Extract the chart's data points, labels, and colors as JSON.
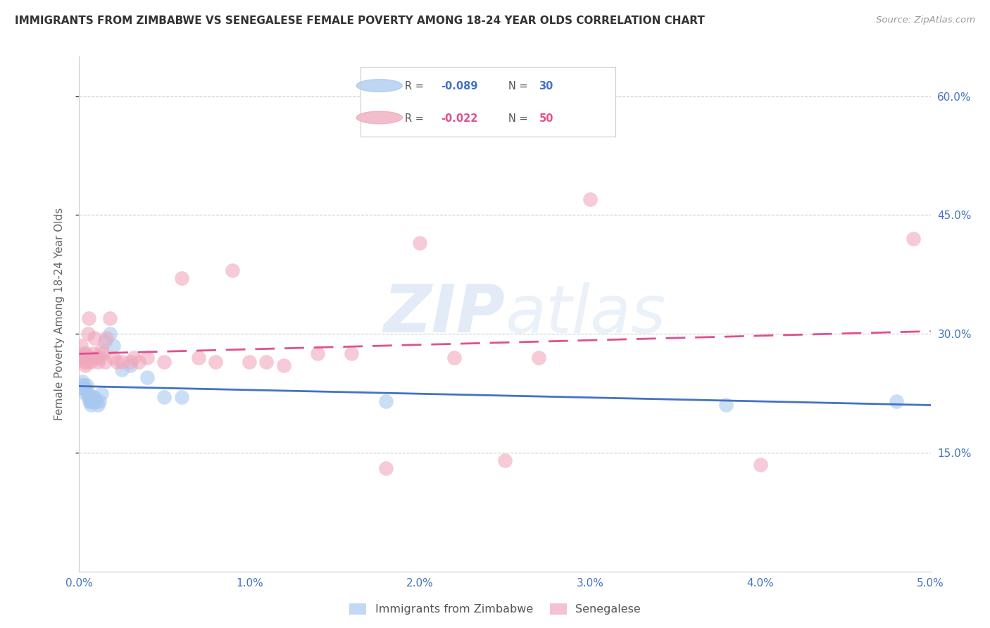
{
  "title": "IMMIGRANTS FROM ZIMBABWE VS SENEGALESE FEMALE POVERTY AMONG 18-24 YEAR OLDS CORRELATION CHART",
  "source": "Source: ZipAtlas.com",
  "ylabel": "Female Poverty Among 18-24 Year Olds",
  "right_yticks": [
    0.15,
    0.3,
    0.45,
    0.6
  ],
  "right_yticklabels": [
    "15.0%",
    "30.0%",
    "45.0%",
    "60.0%"
  ],
  "legend_r1": "-0.089",
  "legend_n1": "30",
  "legend_r2": "-0.022",
  "legend_n2": "50",
  "watermark_zip": "ZIP",
  "watermark_atlas": "atlas",
  "blue_color": "#a8c8f0",
  "pink_color": "#f0a8bc",
  "blue_line_color": "#4472c4",
  "pink_line_color": "#e05090",
  "axis_color": "#4472c4",
  "title_color": "#333333",
  "source_color": "#999999",
  "background": "#ffffff",
  "zimbabwe_x": [
    0.00015,
    0.0002,
    0.00025,
    0.0003,
    0.00035,
    0.0004,
    0.00045,
    0.0005,
    0.00055,
    0.0006,
    0.00065,
    0.0007,
    0.00075,
    0.0008,
    0.0009,
    0.001,
    0.0011,
    0.0012,
    0.0013,
    0.0015,
    0.0018,
    0.002,
    0.0025,
    0.003,
    0.004,
    0.005,
    0.006,
    0.018,
    0.038,
    0.048
  ],
  "zimbabwe_y": [
    0.235,
    0.24,
    0.235,
    0.23,
    0.225,
    0.23,
    0.235,
    0.225,
    0.22,
    0.215,
    0.215,
    0.21,
    0.215,
    0.22,
    0.22,
    0.215,
    0.21,
    0.215,
    0.225,
    0.29,
    0.3,
    0.285,
    0.255,
    0.26,
    0.245,
    0.22,
    0.22,
    0.215,
    0.21,
    0.215
  ],
  "senegalese_x": [
    5e-05,
    0.0001,
    0.00015,
    0.0002,
    0.00025,
    0.0003,
    0.00035,
    0.0004,
    0.00045,
    0.0005,
    0.00055,
    0.0006,
    0.00065,
    0.0007,
    0.00075,
    0.0008,
    0.0009,
    0.001,
    0.0011,
    0.0012,
    0.0013,
    0.0014,
    0.0015,
    0.0016,
    0.0018,
    0.002,
    0.0022,
    0.0025,
    0.003,
    0.0032,
    0.0035,
    0.004,
    0.005,
    0.006,
    0.007,
    0.008,
    0.009,
    0.01,
    0.011,
    0.012,
    0.014,
    0.016,
    0.018,
    0.02,
    0.022,
    0.025,
    0.027,
    0.03,
    0.04,
    0.049
  ],
  "senegalese_y": [
    0.27,
    0.285,
    0.27,
    0.27,
    0.275,
    0.265,
    0.26,
    0.275,
    0.265,
    0.3,
    0.32,
    0.27,
    0.27,
    0.265,
    0.27,
    0.275,
    0.295,
    0.27,
    0.265,
    0.27,
    0.28,
    0.275,
    0.265,
    0.295,
    0.32,
    0.27,
    0.265,
    0.265,
    0.265,
    0.27,
    0.265,
    0.27,
    0.265,
    0.37,
    0.27,
    0.265,
    0.38,
    0.265,
    0.265,
    0.26,
    0.275,
    0.275,
    0.13,
    0.415,
    0.27,
    0.14,
    0.27,
    0.47,
    0.135,
    0.42
  ],
  "xlim": [
    0.0,
    0.05
  ],
  "ylim": [
    0.0,
    0.65
  ],
  "xticks": [
    0.0,
    0.01,
    0.02,
    0.03,
    0.04,
    0.05
  ],
  "xticklabels": [
    "0.0%",
    "1.0%",
    "2.0%",
    "3.0%",
    "4.0%",
    "5.0%"
  ]
}
